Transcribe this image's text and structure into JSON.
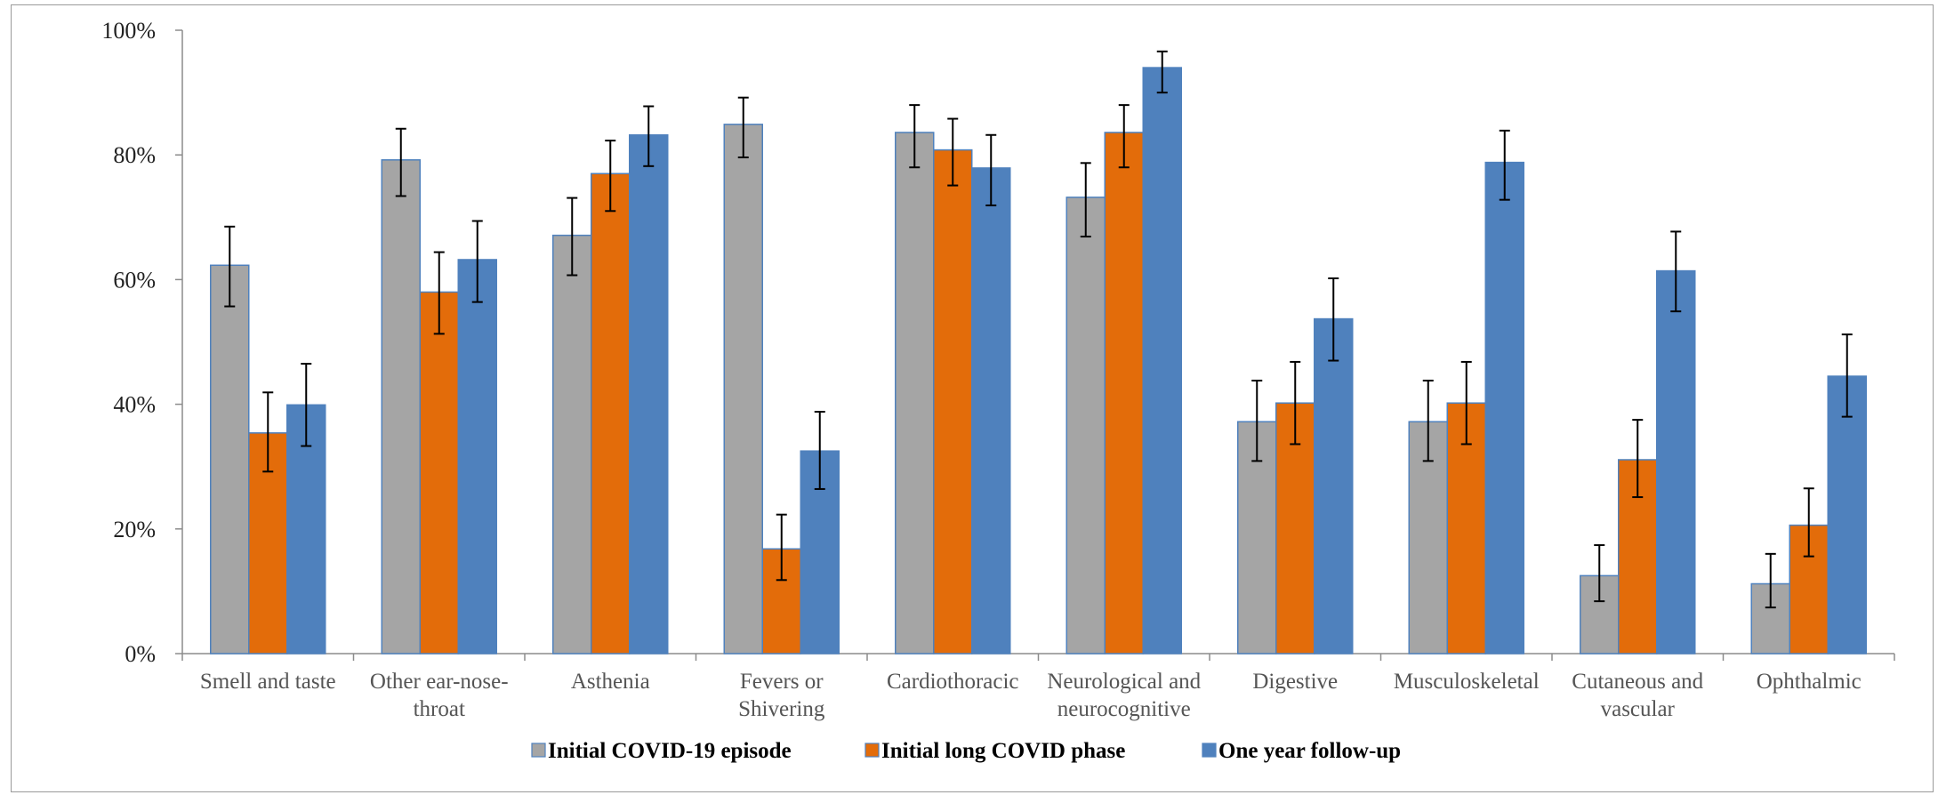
{
  "chart_data": {
    "type": "bar",
    "title": "",
    "xlabel": "",
    "ylabel": "",
    "ylim": [
      0,
      100
    ],
    "y_ticks": [
      "0%",
      "20%",
      "40%",
      "60%",
      "80%",
      "100%"
    ],
    "y_tick_values": [
      0,
      20,
      40,
      60,
      80,
      100
    ],
    "grid": false,
    "legend_position": "bottom",
    "error_bars": true,
    "categories": [
      [
        "Smell and taste"
      ],
      [
        "Other ear-nose-",
        "throat"
      ],
      [
        "Asthenia"
      ],
      [
        "Fevers or",
        "Shivering"
      ],
      [
        "Cardiothoracic"
      ],
      [
        "Neurological and",
        "neurocognitive"
      ],
      [
        "Digestive"
      ],
      [
        "Musculoskeletal"
      ],
      [
        "Cutaneous and",
        "vascular"
      ],
      [
        "Ophthalmic"
      ]
    ],
    "series": [
      {
        "name": "Initial COVID-19 episode",
        "color": "#a5a5a5",
        "values": [
          62.3,
          79.2,
          67.1,
          84.9,
          83.6,
          73.2,
          37.2,
          37.2,
          12.5,
          11.2
        ],
        "err_low": [
          55.7,
          73.4,
          60.7,
          79.6,
          78.0,
          66.9,
          30.9,
          30.9,
          8.4,
          7.4
        ],
        "err_high": [
          68.5,
          84.2,
          73.1,
          89.2,
          88.0,
          78.7,
          43.8,
          43.8,
          17.4,
          16.0
        ]
      },
      {
        "name": "Initial long COVID phase",
        "color": "#e36c0a",
        "values": [
          35.4,
          58.0,
          77.0,
          16.8,
          80.8,
          83.6,
          40.2,
          40.2,
          31.1,
          20.6
        ],
        "err_low": [
          29.2,
          51.3,
          71.0,
          11.8,
          75.1,
          78.0,
          33.6,
          33.6,
          25.1,
          15.6
        ],
        "err_high": [
          41.9,
          64.4,
          82.3,
          22.3,
          85.8,
          88.0,
          46.8,
          46.8,
          37.5,
          26.5
        ]
      },
      {
        "name": "One year follow-up",
        "color": "#4f81bd",
        "values": [
          39.9,
          63.2,
          83.2,
          32.5,
          77.9,
          94.0,
          53.7,
          78.8,
          61.4,
          44.5
        ],
        "err_low": [
          33.3,
          56.4,
          78.2,
          26.4,
          71.9,
          90.0,
          47.0,
          72.8,
          54.9,
          38.0
        ],
        "err_high": [
          46.5,
          69.4,
          87.8,
          38.8,
          83.2,
          96.6,
          60.2,
          83.9,
          67.7,
          51.2
        ]
      }
    ]
  }
}
